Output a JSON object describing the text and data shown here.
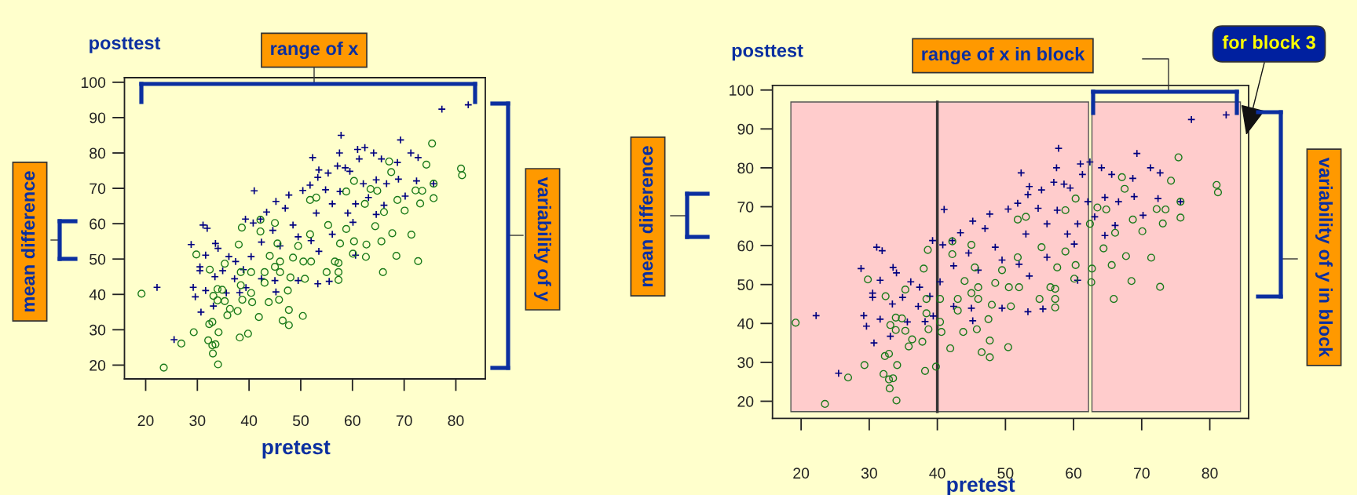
{
  "chart_data": [
    {
      "type": "scatter",
      "xlabel": "pretest",
      "ylabel": "posttest",
      "annotations": [
        "range of x",
        "mean difference",
        "variability of y"
      ],
      "xlim": [
        15.9,
        85.7
      ],
      "ylim": [
        16.1,
        101.3
      ],
      "xticks": [
        20,
        30,
        40,
        50,
        60,
        70,
        80
      ],
      "yticks": [
        20,
        30,
        40,
        50,
        60,
        70,
        80,
        90,
        100
      ],
      "grid": false,
      "series": [
        {
          "color": "#000080",
          "marker": "cross",
          "x": [
            82.4,
            77.3,
            57.8,
            69.3,
            52.3,
            57.5,
            61.0,
            62.4,
            64.1,
            65.6,
            71.3,
            72.7,
            68.7,
            61.3,
            57.1,
            58.6,
            53.5,
            55.3,
            59.5,
            53.3,
            41.0,
            51.8,
            54.8,
            57.6,
            62.1,
            64.6,
            66.6,
            68.9,
            72.4,
            75.7,
            70.2,
            66.1,
            63.1,
            60.6,
            50.4,
            47.7,
            45.2,
            47.0,
            43.4,
            42.2,
            39.3,
            40.8,
            44.6,
            48.5,
            53.0,
            56.1,
            59.1,
            64.6,
            60.1,
            31.1,
            31.9,
            28.8,
            33.5,
            34.0,
            42.4,
            46.0,
            49.5,
            52.0,
            56.1,
            53.5,
            60.6,
            31.6,
            36.1,
            37.4,
            40.4,
            30.5,
            30.5,
            34.9,
            38.9,
            33.4,
            37.2,
            42.4,
            45.0,
            49.5,
            53.3,
            55.5,
            22.2,
            29.2,
            29.6,
            31.6,
            35.6,
            38.2,
            39.4,
            45.2,
            33.1,
            30.7,
            25.5
          ],
          "values": [
            93.6,
            92.4,
            85.0,
            83.7,
            78.7,
            80.0,
            81.0,
            81.5,
            80.0,
            78.3,
            80.0,
            78.7,
            77.3,
            78.3,
            76.3,
            75.8,
            75.2,
            74.3,
            74.8,
            73.1,
            69.3,
            70.9,
            69.6,
            69.1,
            71.3,
            72.4,
            71.3,
            72.6,
            72.1,
            71.3,
            67.8,
            65.2,
            67.4,
            65.6,
            69.4,
            68.1,
            66.3,
            64.4,
            63.3,
            61.3,
            61.3,
            60.2,
            58.1,
            59.6,
            63.0,
            65.6,
            63.0,
            62.6,
            60.4,
            59.6,
            58.7,
            54.1,
            54.4,
            53.0,
            54.8,
            53.7,
            56.3,
            55.2,
            57.0,
            52.2,
            51.1,
            51.1,
            50.7,
            49.3,
            50.7,
            47.8,
            46.7,
            46.7,
            47.0,
            45.0,
            44.4,
            44.4,
            43.9,
            43.9,
            43.0,
            43.7,
            42.0,
            42.0,
            39.3,
            41.1,
            40.4,
            40.5,
            41.9,
            40.7,
            36.7,
            35.0,
            27.2
          ]
        },
        {
          "color": "#1a7a1a",
          "marker": "circle",
          "x": [
            75.4,
            74.3,
            81.0,
            81.2,
            67.1,
            67.5,
            60.3,
            75.7,
            75.7,
            72.2,
            73.5,
            73.1,
            68.7,
            70.1,
            64.8,
            63.5,
            58.8,
            62.4,
            66.1,
            67.7,
            71.4,
            65.6,
            68.5,
            72.7,
            65.9,
            62.6,
            62.7,
            60.3,
            57.6,
            60.1,
            64.4,
            58.8,
            55.3,
            51.8,
            53.0,
            51.8,
            45.0,
            42.2,
            38.6,
            38.0,
            29.8,
            32.4,
            35.3,
            44.0,
            46.0,
            48.5,
            50.5,
            56.6,
            57.3,
            57.3,
            55.0,
            50.8,
            48.0,
            46.0,
            43.0,
            40.4,
            38.4,
            38.4,
            43.0,
            40.4,
            47.5,
            33.9,
            34.8,
            33.1,
            33.9,
            35.3,
            38.7,
            40.6,
            43.8,
            45.8,
            19.2,
            36.3,
            37.8,
            47.7,
            35.8,
            41.9,
            50.4,
            46.5,
            47.7,
            32.9,
            32.3,
            34.1,
            29.3,
            38.2,
            39.8,
            26.9,
            32.1,
            32.9,
            33.5,
            33.0,
            34.0,
            23.5,
            42.2,
            45.5,
            49.5,
            52.0,
            45.0,
            57.3
          ],
          "values": [
            82.7,
            76.7,
            75.6,
            73.7,
            77.6,
            74.6,
            72.1,
            71.3,
            67.2,
            69.4,
            69.3,
            65.7,
            66.7,
            63.7,
            69.3,
            69.8,
            69.1,
            65.6,
            63.3,
            57.3,
            56.9,
            55.0,
            50.9,
            49.4,
            46.3,
            50.6,
            54.1,
            55.0,
            54.4,
            51.5,
            59.3,
            58.5,
            59.6,
            57.0,
            67.4,
            66.7,
            60.2,
            61.1,
            58.9,
            54.1,
            51.3,
            47.0,
            48.7,
            50.9,
            49.3,
            50.4,
            49.3,
            49.3,
            46.3,
            44.1,
            46.3,
            44.4,
            44.8,
            46.3,
            46.3,
            46.3,
            46.3,
            42.6,
            43.3,
            40.4,
            41.1,
            41.5,
            41.3,
            39.6,
            38.3,
            38.1,
            38.5,
            37.8,
            37.8,
            38.5,
            40.2,
            35.9,
            35.3,
            35.6,
            34.1,
            33.6,
            33.9,
            32.6,
            31.3,
            32.2,
            31.6,
            29.3,
            29.3,
            27.8,
            28.9,
            26.1,
            27.0,
            25.6,
            25.9,
            23.3,
            20.2,
            19.3,
            57.8,
            54.4,
            53.7,
            49.3,
            47.8,
            48.9
          ]
        }
      ]
    },
    {
      "type": "scatter",
      "xlabel": "pretest",
      "ylabel": "posttest",
      "annotations": [
        "range of x in block",
        "for block 3",
        "mean difference",
        "variability of y in block"
      ],
      "xlim": [
        15.8,
        85.7
      ],
      "ylim": [
        15.6,
        101.2
      ],
      "xticks": [
        20,
        30,
        40,
        50,
        60,
        70,
        80
      ],
      "yticks": [
        20,
        30,
        40,
        50,
        60,
        70,
        80,
        90,
        100
      ],
      "grid": false,
      "bands": [
        {
          "axis": "x",
          "from": 18.5,
          "to": 40,
          "color": "#ffcccc"
        },
        {
          "axis": "x",
          "from": 40,
          "to": 62.2,
          "color": "#ffcccc"
        },
        {
          "axis": "x",
          "from": 62.7,
          "to": 84.5,
          "color": "#ffcccc"
        }
      ],
      "ref_lines": [
        {
          "axis": "x",
          "value": 40,
          "color": "#333333"
        }
      ],
      "series": [
        {
          "color": "#000080",
          "marker": "cross",
          "x": [
            82.4,
            77.3,
            57.8,
            69.3,
            52.3,
            57.5,
            61.0,
            62.4,
            64.1,
            65.6,
            71.3,
            72.7,
            68.7,
            61.3,
            57.1,
            58.6,
            53.5,
            55.3,
            59.5,
            53.3,
            41.0,
            51.8,
            54.8,
            57.6,
            62.1,
            64.6,
            66.6,
            68.9,
            72.4,
            75.7,
            70.2,
            66.1,
            63.1,
            60.6,
            50.4,
            47.7,
            45.2,
            47.0,
            43.4,
            42.2,
            39.3,
            40.8,
            44.6,
            48.5,
            53.0,
            56.1,
            59.1,
            64.6,
            60.1,
            31.1,
            31.9,
            28.8,
            33.5,
            34.0,
            42.4,
            46.0,
            49.5,
            52.0,
            56.1,
            53.5,
            60.6,
            31.6,
            36.1,
            37.4,
            40.4,
            30.5,
            30.5,
            34.9,
            38.9,
            33.4,
            37.2,
            42.4,
            45.0,
            49.5,
            53.3,
            55.5,
            22.2,
            29.2,
            29.6,
            31.6,
            35.6,
            38.2,
            39.4,
            45.2,
            33.1,
            30.7,
            25.5
          ],
          "values": [
            93.6,
            92.4,
            85.0,
            83.7,
            78.7,
            80.0,
            81.0,
            81.5,
            80.0,
            78.3,
            80.0,
            78.7,
            77.3,
            78.3,
            76.3,
            75.8,
            75.2,
            74.3,
            74.8,
            73.1,
            69.3,
            70.9,
            69.6,
            69.1,
            71.3,
            72.4,
            71.3,
            72.6,
            72.1,
            71.3,
            67.8,
            65.2,
            67.4,
            65.6,
            69.4,
            68.1,
            66.3,
            64.4,
            63.3,
            61.3,
            61.3,
            60.2,
            58.1,
            59.6,
            63.0,
            65.6,
            63.0,
            62.6,
            60.4,
            59.6,
            58.7,
            54.1,
            54.4,
            53.0,
            54.8,
            53.7,
            56.3,
            55.2,
            57.0,
            52.2,
            51.1,
            51.1,
            50.7,
            49.3,
            50.7,
            47.8,
            46.7,
            46.7,
            47.0,
            45.0,
            44.4,
            44.4,
            43.9,
            43.9,
            43.0,
            43.7,
            42.0,
            42.0,
            39.3,
            41.1,
            40.4,
            40.5,
            41.9,
            40.7,
            36.7,
            35.0,
            27.2
          ]
        },
        {
          "color": "#1a7a1a",
          "marker": "circle",
          "x": [
            75.4,
            74.3,
            81.0,
            81.2,
            67.1,
            67.5,
            60.3,
            75.7,
            75.7,
            72.2,
            73.5,
            73.1,
            68.7,
            70.1,
            64.8,
            63.5,
            58.8,
            62.4,
            66.1,
            67.7,
            71.4,
            65.6,
            68.5,
            72.7,
            65.9,
            62.6,
            62.7,
            60.3,
            57.6,
            60.1,
            64.4,
            58.8,
            55.3,
            51.8,
            53.0,
            51.8,
            45.0,
            42.2,
            38.6,
            38.0,
            29.8,
            32.4,
            35.3,
            44.0,
            46.0,
            48.5,
            50.5,
            56.6,
            57.3,
            57.3,
            55.0,
            50.8,
            48.0,
            46.0,
            43.0,
            40.4,
            38.4,
            38.4,
            43.0,
            40.4,
            47.5,
            33.9,
            34.8,
            33.1,
            33.9,
            35.3,
            38.7,
            40.6,
            43.8,
            45.8,
            19.2,
            36.3,
            37.8,
            47.7,
            35.8,
            41.9,
            50.4,
            46.5,
            47.7,
            32.9,
            32.3,
            34.1,
            29.3,
            38.2,
            39.8,
            26.9,
            32.1,
            32.9,
            33.5,
            33.0,
            34.0,
            23.5,
            42.2,
            45.5,
            49.5,
            52.0,
            45.0,
            57.3
          ],
          "values": [
            82.7,
            76.7,
            75.6,
            73.7,
            77.6,
            74.6,
            72.1,
            71.3,
            67.2,
            69.4,
            69.3,
            65.7,
            66.7,
            63.7,
            69.3,
            69.8,
            69.1,
            65.6,
            63.3,
            57.3,
            56.9,
            55.0,
            50.9,
            49.4,
            46.3,
            50.6,
            54.1,
            55.0,
            54.4,
            51.5,
            59.3,
            58.5,
            59.6,
            57.0,
            67.4,
            66.7,
            60.2,
            61.1,
            58.9,
            54.1,
            51.3,
            47.0,
            48.7,
            50.9,
            49.3,
            50.4,
            49.3,
            49.3,
            46.3,
            44.1,
            46.3,
            44.4,
            44.8,
            46.3,
            46.3,
            46.3,
            46.3,
            42.6,
            43.3,
            40.4,
            41.1,
            41.5,
            41.3,
            39.6,
            38.3,
            38.1,
            38.5,
            37.8,
            37.8,
            38.5,
            40.2,
            35.9,
            35.3,
            35.6,
            34.1,
            33.6,
            33.9,
            32.6,
            31.3,
            32.2,
            31.6,
            29.3,
            29.3,
            27.8,
            28.9,
            26.1,
            27.0,
            25.6,
            25.9,
            23.3,
            20.2,
            19.3,
            57.8,
            54.4,
            53.7,
            49.3,
            47.8,
            48.9
          ]
        }
      ]
    }
  ]
}
